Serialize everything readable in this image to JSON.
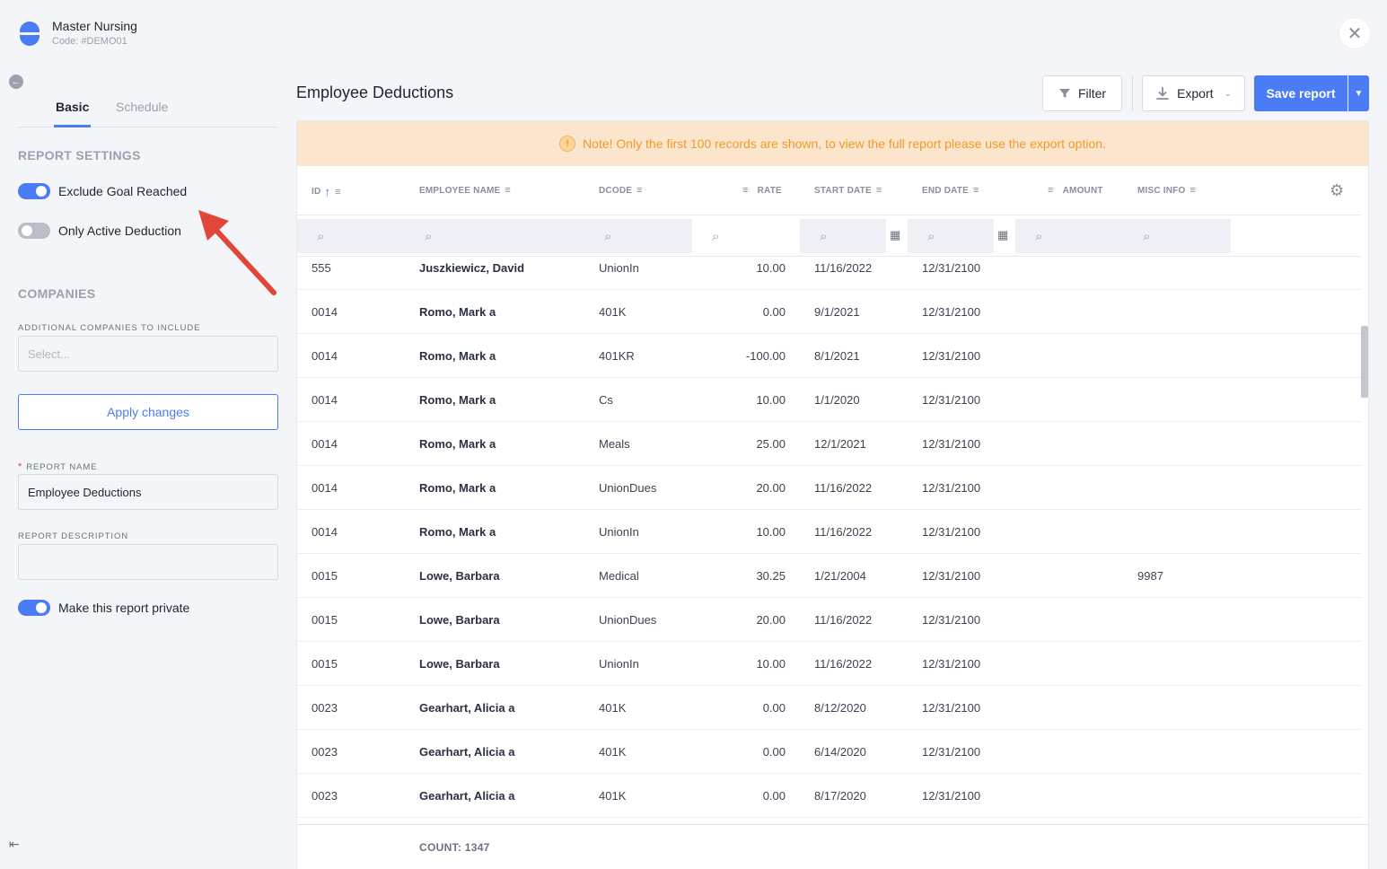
{
  "company": {
    "name": "Master Nursing",
    "code": "Code: #DEMO01"
  },
  "tabs": [
    {
      "label": "Basic"
    },
    {
      "label": "Schedule"
    }
  ],
  "settings": {
    "report_settings_title": "REPORT SETTINGS",
    "exclude_goal_reached": {
      "label": "Exclude Goal Reached",
      "on": true
    },
    "only_active_deduction": {
      "label": "Only Active Deduction",
      "on": false
    },
    "companies_title": "COMPANIES",
    "additional_companies_label": "ADDITIONAL COMPANIES TO INCLUDE",
    "additional_companies_placeholder": "Select...",
    "apply_label": "Apply changes",
    "report_name_label": "REPORT NAME",
    "report_name_required": "*",
    "report_name_value": "Employee Deductions",
    "report_description_label": "REPORT DESCRIPTION",
    "report_description_value": "",
    "private": {
      "label": "Make this report private",
      "on": true
    }
  },
  "header": {
    "title": "Employee Deductions",
    "filter_label": "Filter",
    "export_label": "Export",
    "save_label": "Save report"
  },
  "notice": {
    "text": "Note! Only the first 100 records are shown, to view the full report please use the export option.",
    "icon": "!"
  },
  "columns": [
    "ID",
    "EMPLOYEE NAME",
    "DCODE",
    "RATE",
    "START DATE",
    "END DATE",
    "AMOUNT",
    "MISC INFO"
  ],
  "rows": [
    {
      "id": "555",
      "name": "Juszkiewicz, David",
      "dcode": "UnionIn",
      "rate": "10.00",
      "start": "11/16/2022",
      "end": "12/31/2100",
      "misc": ""
    },
    {
      "id": "0014",
      "name": "Romo, Mark a",
      "dcode": "401K",
      "rate": "0.00",
      "start": "9/1/2021",
      "end": "12/31/2100",
      "misc": ""
    },
    {
      "id": "0014",
      "name": "Romo, Mark a",
      "dcode": "401KR",
      "rate": "-100.00",
      "start": "8/1/2021",
      "end": "12/31/2100",
      "misc": ""
    },
    {
      "id": "0014",
      "name": "Romo, Mark a",
      "dcode": "Cs",
      "rate": "10.00",
      "start": "1/1/2020",
      "end": "12/31/2100",
      "misc": ""
    },
    {
      "id": "0014",
      "name": "Romo, Mark a",
      "dcode": "Meals",
      "rate": "25.00",
      "start": "12/1/2021",
      "end": "12/31/2100",
      "misc": ""
    },
    {
      "id": "0014",
      "name": "Romo, Mark a",
      "dcode": "UnionDues",
      "rate": "20.00",
      "start": "11/16/2022",
      "end": "12/31/2100",
      "misc": ""
    },
    {
      "id": "0014",
      "name": "Romo, Mark a",
      "dcode": "UnionIn",
      "rate": "10.00",
      "start": "11/16/2022",
      "end": "12/31/2100",
      "misc": ""
    },
    {
      "id": "0015",
      "name": "Lowe, Barbara",
      "dcode": "Medical",
      "rate": "30.25",
      "start": "1/21/2004",
      "end": "12/31/2100",
      "misc": "9987"
    },
    {
      "id": "0015",
      "name": "Lowe, Barbara",
      "dcode": "UnionDues",
      "rate": "20.00",
      "start": "11/16/2022",
      "end": "12/31/2100",
      "misc": ""
    },
    {
      "id": "0015",
      "name": "Lowe, Barbara",
      "dcode": "UnionIn",
      "rate": "10.00",
      "start": "11/16/2022",
      "end": "12/31/2100",
      "misc": ""
    },
    {
      "id": "0023",
      "name": "Gearhart, Alicia a",
      "dcode": "401K",
      "rate": "0.00",
      "start": "8/12/2020",
      "end": "12/31/2100",
      "misc": ""
    },
    {
      "id": "0023",
      "name": "Gearhart, Alicia a",
      "dcode": "401K",
      "rate": "0.00",
      "start": "6/14/2020",
      "end": "12/31/2100",
      "misc": ""
    },
    {
      "id": "0023",
      "name": "Gearhart, Alicia a",
      "dcode": "401K",
      "rate": "0.00",
      "start": "8/17/2020",
      "end": "12/31/2100",
      "misc": ""
    }
  ],
  "footer": {
    "count": "COUNT: 1347"
  },
  "colors": {
    "accent": "#4a7cf6",
    "notice_bg": "#fbe5cc",
    "notice_text": "#f19a27",
    "annotation_arrow": "#e0473a"
  }
}
